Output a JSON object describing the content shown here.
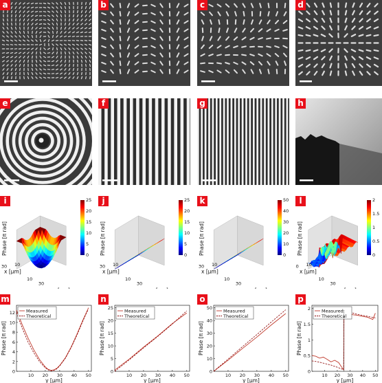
{
  "panels": {
    "a": {
      "label": "a"
    },
    "b": {
      "label": "b"
    },
    "c": {
      "label": "c"
    },
    "d": {
      "label": "d"
    },
    "e": {
      "label": "e"
    },
    "f": {
      "label": "f"
    },
    "g": {
      "label": "g"
    },
    "h": {
      "label": "h"
    },
    "i": {
      "label": "i",
      "zlabel": "Phase [π rad]",
      "xlabel": "x [μm]",
      "ylabel": "y [μm]",
      "xticks": [
        "30",
        "10"
      ],
      "yticks": [
        "10",
        "30"
      ],
      "cbar_ticks": [
        "25",
        "20",
        "15",
        "10",
        "5",
        "0"
      ]
    },
    "j": {
      "label": "j",
      "zlabel": "Phase [π rad]",
      "xlabel": "x [μm]",
      "ylabel": "y [μm]",
      "xticks": [
        "30",
        "10"
      ],
      "yticks": [
        "10",
        "30"
      ],
      "cbar_ticks": [
        "25",
        "20",
        "15",
        "10",
        "5",
        "0"
      ]
    },
    "k": {
      "label": "k",
      "zlabel": "Phase [π rad]",
      "xlabel": "x [μm]",
      "ylabel": "y [μm]",
      "xticks": [
        "30",
        "10"
      ],
      "yticks": [
        "10",
        "30"
      ],
      "cbar_ticks": [
        "50",
        "40",
        "30",
        "20",
        "10",
        "0"
      ]
    },
    "l": {
      "label": "l",
      "zlabel": "Phase [π rad]",
      "xlabel": "x [μm]",
      "ylabel": "y [μm]",
      "xticks": [
        "30",
        "10"
      ],
      "yticks": [
        "10",
        "30"
      ],
      "cbar_ticks": [
        "2",
        "1.5",
        "1",
        "0.5",
        "0"
      ]
    },
    "m": {
      "label": "m"
    },
    "n": {
      "label": "n"
    },
    "o": {
      "label": "o"
    },
    "p": {
      "label": "p"
    }
  },
  "colors": {
    "badge": "#e8101a",
    "measured": "#c0392b",
    "theoretical": "#8b0000"
  },
  "chart_data": [
    {
      "type": "line",
      "panel": "m",
      "ylabel": "Phase [π rad]",
      "xlabel": "y [μm]",
      "xlim": [
        0,
        52
      ],
      "ylim": [
        0,
        13.5
      ],
      "yticks": [
        "12",
        "10",
        "8",
        "6",
        "4",
        "2",
        "0"
      ],
      "xticks": [
        "10",
        "20",
        "30",
        "40",
        "50"
      ],
      "series": [
        {
          "name": "Measured",
          "x": [
            0,
            4,
            8,
            12,
            16,
            20,
            22,
            24,
            26,
            28,
            30,
            34,
            38,
            42,
            46,
            49,
            50
          ],
          "y": [
            12.5,
            9.5,
            6.8,
            4.4,
            2.4,
            0.9,
            0.4,
            0.2,
            0.3,
            0.6,
            1.2,
            2.8,
            5.0,
            7.6,
            10.4,
            12.3,
            13.0
          ]
        },
        {
          "name": "Theoretical",
          "x": [
            0,
            4,
            8,
            12,
            16,
            20,
            22,
            24,
            26,
            28,
            30,
            34,
            38,
            42,
            46,
            49,
            50
          ],
          "y": [
            12.0,
            8.8,
            6.0,
            3.8,
            2.0,
            0.7,
            0.3,
            0.1,
            0.2,
            0.5,
            1.1,
            2.7,
            4.9,
            7.4,
            10.2,
            12.2,
            12.6
          ]
        }
      ]
    },
    {
      "type": "line",
      "panel": "n",
      "ylabel": "Phase [π rad]",
      "xlabel": "y [μm]",
      "xlim": [
        0,
        52
      ],
      "ylim": [
        0,
        26
      ],
      "yticks": [
        "25",
        "20",
        "15",
        "10",
        "5",
        "0"
      ],
      "xticks": [
        "10",
        "20",
        "30",
        "40",
        "50"
      ],
      "series": [
        {
          "name": "Measured",
          "x": [
            0,
            10,
            20,
            30,
            40,
            50
          ],
          "y": [
            0.5,
            4.8,
            9.5,
            14.0,
            18.8,
            23.0
          ]
        },
        {
          "name": "Theoretical",
          "x": [
            0,
            10,
            20,
            30,
            40,
            50
          ],
          "y": [
            0,
            4.5,
            9.2,
            13.8,
            18.6,
            23.8
          ]
        }
      ]
    },
    {
      "type": "line",
      "panel": "o",
      "ylabel": "Phase [π rad]",
      "xlabel": "y [μm]",
      "xlim": [
        0,
        52
      ],
      "ylim": [
        0,
        52
      ],
      "yticks": [
        "50",
        "40",
        "30",
        "20",
        "10",
        "0"
      ],
      "xticks": [
        "10",
        "20",
        "30",
        "40",
        "50"
      ],
      "series": [
        {
          "name": "Measured",
          "x": [
            0,
            10,
            20,
            30,
            40,
            50
          ],
          "y": [
            0,
            8.8,
            18.0,
            27.0,
            36.5,
            45.5
          ]
        },
        {
          "name": "Theoretical",
          "x": [
            0,
            10,
            20,
            30,
            40,
            50
          ],
          "y": [
            0,
            9.6,
            19.4,
            29.0,
            38.8,
            48.5
          ]
        }
      ]
    },
    {
      "type": "line",
      "panel": "p",
      "ylabel": "Phase [π rad]",
      "xlabel": "y [μm]",
      "xlim": [
        0,
        52
      ],
      "ylim": [
        0,
        2.1
      ],
      "yticks": [
        "2",
        "1.5",
        "1",
        "0.5",
        "0"
      ],
      "xticks": [
        "10",
        "20",
        "30",
        "40",
        "50"
      ],
      "series": [
        {
          "name": "Measured",
          "x": [
            0,
            3,
            6,
            9,
            12,
            15,
            18,
            21,
            24,
            25,
            25.3,
            28,
            32,
            36,
            40,
            44,
            48,
            50
          ],
          "y": [
            0.5,
            0.48,
            0.42,
            0.45,
            0.38,
            0.3,
            0.35,
            0.28,
            0.1,
            0.05,
            1.92,
            1.85,
            1.8,
            1.78,
            1.75,
            1.72,
            1.65,
            1.85
          ]
        },
        {
          "name": "Theoretical",
          "x": [
            0,
            5,
            10,
            15,
            20,
            25,
            25.3,
            30,
            35,
            40,
            45,
            50
          ],
          "y": [
            0.33,
            0.3,
            0.25,
            0.2,
            0.13,
            0.05,
            1.95,
            1.88,
            1.82,
            1.78,
            1.74,
            1.7
          ]
        }
      ]
    }
  ]
}
